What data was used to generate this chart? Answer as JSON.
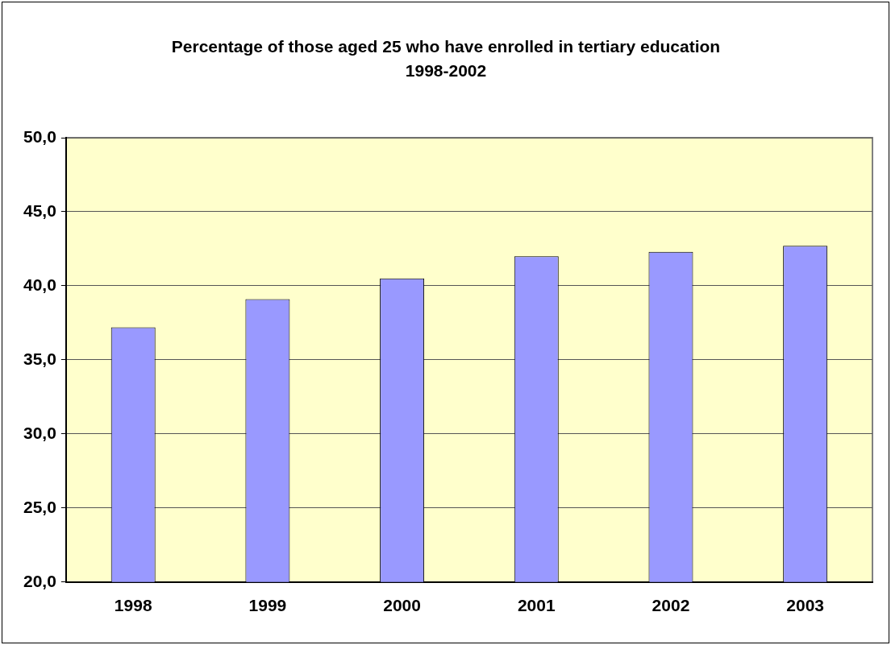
{
  "chart_data": {
    "type": "bar",
    "title": "Percentage of those aged 25 who have enrolled in tertiary education 1998-2002",
    "categories": [
      "1998",
      "1999",
      "2000",
      "2001",
      "2002",
      "2003"
    ],
    "values": [
      37.2,
      39.1,
      40.5,
      42.0,
      42.3,
      42.7
    ],
    "color": "#9999ff",
    "ylim": [
      20,
      50
    ],
    "yticks": [
      {
        "value": 20,
        "label": "20,0"
      },
      {
        "value": 25,
        "label": "25,0"
      },
      {
        "value": 30,
        "label": "30,0"
      },
      {
        "value": 35,
        "label": "35,0"
      },
      {
        "value": 40,
        "label": "40,0"
      },
      {
        "value": 45,
        "label": "45,0"
      },
      {
        "value": 50,
        "label": "50,0"
      }
    ],
    "grid": "y",
    "legend": false
  }
}
